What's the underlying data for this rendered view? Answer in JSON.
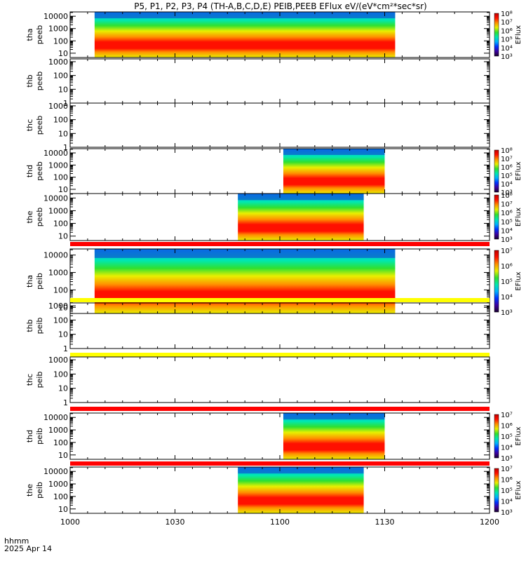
{
  "chart_data": {
    "type": "heatmap",
    "title": "P5, P1, P2, P3, P4 (TH-A,B,C,D,E) PEIB,PEEB EFlux eV/(eV*cm²*sec*sr)",
    "x_ticks": [
      "1000",
      "1030",
      "1100",
      "1130",
      "1200"
    ],
    "x_range_minutes": [
      0,
      120
    ],
    "corner_label_1": "hhmm",
    "corner_label_2": "2025 Apr 14",
    "colorbar_label": "EFlux",
    "colormap": [
      "#1a0030",
      "#3c00a0",
      "#0030ff",
      "#00b0ff",
      "#00e8b0",
      "#30e030",
      "#e8f000",
      "#ff9000",
      "#ff1000",
      "#c00000"
    ],
    "panels": [
      {
        "probe": "tha",
        "species": "peeb",
        "ylabel_1": "tha",
        "ylabel_2": "peeb",
        "y_ticks": [
          "10",
          "100",
          "1000",
          "10000"
        ],
        "ylog": [
          0.65,
          4.35
        ],
        "data_minutes": [
          7,
          93
        ],
        "colorbar": true,
        "cb_ticks": [
          "10³",
          "10⁴",
          "10⁵",
          "10⁶",
          "10⁷",
          "10⁸"
        ],
        "cb_log": [
          3,
          8
        ],
        "bar_above": false
      },
      {
        "probe": "thb",
        "species": "peeb",
        "ylabel_1": "thb",
        "ylabel_2": "peeb",
        "y_ticks": [
          "1",
          "10",
          "100",
          "1000"
        ],
        "ylog": [
          0,
          3.2
        ],
        "data_minutes": null,
        "colorbar": false,
        "bar_above": false
      },
      {
        "probe": "thc",
        "species": "peeb",
        "ylabel_1": "thc",
        "ylabel_2": "peeb",
        "y_ticks": [
          "1",
          "10",
          "100",
          "1000"
        ],
        "ylog": [
          0,
          3.2
        ],
        "data_minutes": null,
        "colorbar": false,
        "bar_above": false
      },
      {
        "probe": "thd",
        "species": "peeb",
        "ylabel_1": "thd",
        "ylabel_2": "peeb",
        "y_ticks": [
          "10",
          "100",
          "1000",
          "10000"
        ],
        "ylog": [
          0.65,
          4.35
        ],
        "data_minutes": [
          61,
          90
        ],
        "colorbar": true,
        "cb_ticks": [
          "10³",
          "10⁴",
          "10⁵",
          "10⁶",
          "10⁷",
          "10⁸"
        ],
        "cb_log": [
          3,
          8
        ],
        "bar_above": false
      },
      {
        "probe": "the",
        "species": "peeb",
        "ylabel_1": "the",
        "ylabel_2": "peeb",
        "y_ticks": [
          "10",
          "100",
          "1000",
          "10000"
        ],
        "ylog": [
          0.65,
          4.35
        ],
        "data_minutes": [
          48,
          84
        ],
        "colorbar": true,
        "cb_ticks": [
          "10³",
          "10⁴",
          "10⁵",
          "10⁶",
          "10⁷",
          "10⁸"
        ],
        "cb_log": [
          3,
          8
        ],
        "bar_above": false
      },
      {
        "probe": "tha",
        "species": "peib",
        "ylabel_1": "tha",
        "ylabel_2": "peib",
        "y_ticks": [
          "10",
          "100",
          "1000",
          "10000"
        ],
        "ylog": [
          0.65,
          4.35
        ],
        "data_minutes": [
          7,
          93
        ],
        "colorbar": true,
        "cb_ticks": [
          "10³",
          "10⁴",
          "10⁵",
          "10⁶",
          "10⁷"
        ],
        "cb_log": [
          3,
          7
        ],
        "bar_above": true,
        "bar_color": "#ff0000"
      },
      {
        "probe": "thb",
        "species": "peib",
        "ylabel_1": "thb",
        "ylabel_2": "peib",
        "y_ticks": [
          "1",
          "10",
          "100",
          "1000"
        ],
        "ylog": [
          0,
          3.2
        ],
        "data_minutes": null,
        "colorbar": false,
        "bar_above": true,
        "bar_color": "#ffff00"
      },
      {
        "probe": "thc",
        "species": "peib",
        "ylabel_1": "thc",
        "ylabel_2": "peib",
        "y_ticks": [
          "1",
          "10",
          "100",
          "1000"
        ],
        "ylog": [
          0,
          3.2
        ],
        "data_minutes": null,
        "colorbar": false,
        "bar_above": true,
        "bar_color": "#ffff00"
      },
      {
        "probe": "thd",
        "species": "peib",
        "ylabel_1": "thd",
        "ylabel_2": "peib",
        "y_ticks": [
          "10",
          "100",
          "1000",
          "10000"
        ],
        "ylog": [
          0.65,
          4.35
        ],
        "data_minutes": [
          61,
          90
        ],
        "colorbar": true,
        "cb_ticks": [
          "10³",
          "10⁴",
          "10⁵",
          "10⁶",
          "10⁷"
        ],
        "cb_log": [
          3,
          7
        ],
        "bar_above": true,
        "bar_color": "#ff0000"
      },
      {
        "probe": "the",
        "species": "peib",
        "ylabel_1": "the",
        "ylabel_2": "peib",
        "y_ticks": [
          "10",
          "100",
          "1000",
          "10000"
        ],
        "ylog": [
          0.65,
          4.35
        ],
        "data_minutes": [
          48,
          84
        ],
        "colorbar": true,
        "cb_ticks": [
          "10³",
          "10⁴",
          "10⁵",
          "10⁶",
          "10⁷"
        ],
        "cb_log": [
          3,
          7
        ],
        "bar_above": true,
        "bar_color": "#ff0000"
      }
    ]
  }
}
